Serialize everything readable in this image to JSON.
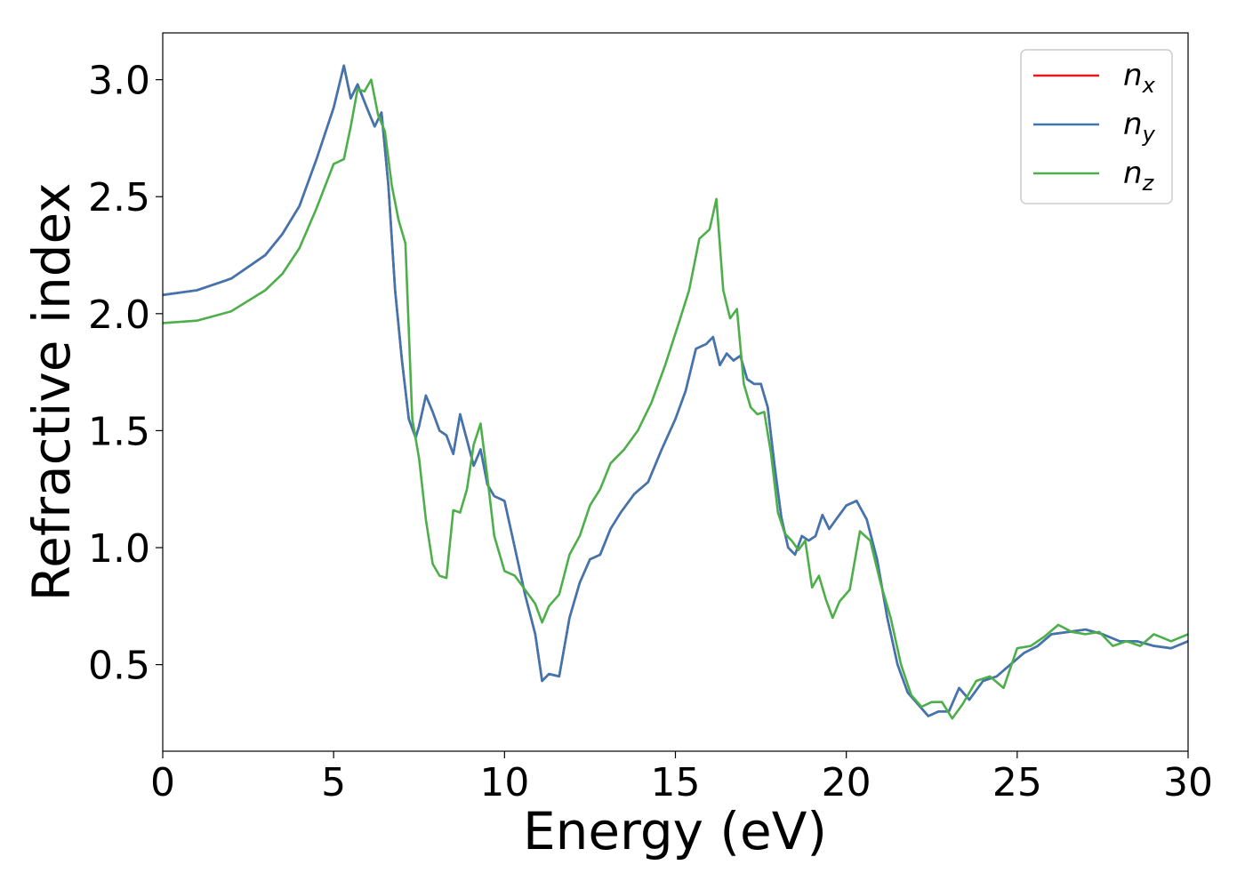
{
  "chart_data": {
    "type": "line",
    "title": "",
    "xlabel": "Energy (eV)",
    "ylabel": "Refractive index",
    "xlim": [
      0,
      30
    ],
    "ylim": [
      0.13,
      3.2
    ],
    "xticks": [
      "0",
      "5",
      "10",
      "15",
      "20",
      "25",
      "30"
    ],
    "yticks": [
      "0.5",
      "1.0",
      "1.5",
      "2.0",
      "2.5",
      "3.0"
    ],
    "xtick_values": [
      0,
      5,
      10,
      15,
      20,
      25,
      30
    ],
    "ytick_values": [
      0.5,
      1.0,
      1.5,
      2.0,
      2.5,
      3.0
    ],
    "grid": false,
    "legend_position": "top-right",
    "series": [
      {
        "name": "n",
        "subscript": "x",
        "color": "#e41a1c",
        "x": [
          0,
          1,
          2,
          3,
          3.5,
          4,
          4.5,
          5,
          5.3,
          5.5,
          5.7,
          6,
          6.2,
          6.4,
          6.6,
          6.8,
          7,
          7.2,
          7.4,
          7.5,
          7.7,
          7.9,
          8.1,
          8.3,
          8.5,
          8.7,
          8.9,
          9.1,
          9.3,
          9.5,
          9.7,
          10,
          10.3,
          10.6,
          10.9,
          11.1,
          11.3,
          11.6,
          11.9,
          12.2,
          12.5,
          12.8,
          13.1,
          13.4,
          13.8,
          14.2,
          14.6,
          15,
          15.3,
          15.6,
          15.9,
          16.1,
          16.3,
          16.5,
          16.7,
          16.9,
          17.1,
          17.3,
          17.5,
          17.7,
          17.9,
          18.1,
          18.3,
          18.5,
          18.7,
          18.9,
          19.1,
          19.3,
          19.5,
          19.7,
          20,
          20.3,
          20.6,
          20.9,
          21.2,
          21.5,
          21.8,
          22.1,
          22.4,
          22.7,
          23,
          23.3,
          23.6,
          24,
          24.4,
          24.8,
          25.2,
          25.6,
          26,
          26.5,
          27,
          27.5,
          28,
          28.5,
          29,
          29.5,
          30
        ],
        "y": [
          2.08,
          2.1,
          2.15,
          2.25,
          2.34,
          2.46,
          2.66,
          2.88,
          3.06,
          2.92,
          2.98,
          2.87,
          2.8,
          2.86,
          2.55,
          2.1,
          1.8,
          1.55,
          1.47,
          1.52,
          1.65,
          1.58,
          1.5,
          1.48,
          1.4,
          1.57,
          1.46,
          1.35,
          1.42,
          1.27,
          1.22,
          1.2,
          1.0,
          0.8,
          0.63,
          0.43,
          0.46,
          0.45,
          0.7,
          0.85,
          0.95,
          0.97,
          1.08,
          1.15,
          1.23,
          1.28,
          1.42,
          1.55,
          1.67,
          1.85,
          1.87,
          1.9,
          1.78,
          1.83,
          1.8,
          1.82,
          1.72,
          1.7,
          1.7,
          1.6,
          1.35,
          1.13,
          1.0,
          0.97,
          1.05,
          1.03,
          1.05,
          1.14,
          1.08,
          1.12,
          1.18,
          1.2,
          1.12,
          0.95,
          0.7,
          0.5,
          0.38,
          0.33,
          0.28,
          0.3,
          0.3,
          0.4,
          0.35,
          0.43,
          0.45,
          0.5,
          0.55,
          0.58,
          0.63,
          0.64,
          0.65,
          0.63,
          0.6,
          0.6,
          0.58,
          0.57,
          0.6
        ]
      },
      {
        "name": "n",
        "subscript": "y",
        "color": "#3d76b0",
        "x": [
          0,
          1,
          2,
          3,
          3.5,
          4,
          4.5,
          5,
          5.3,
          5.5,
          5.7,
          6,
          6.2,
          6.4,
          6.6,
          6.8,
          7,
          7.2,
          7.4,
          7.5,
          7.7,
          7.9,
          8.1,
          8.3,
          8.5,
          8.7,
          8.9,
          9.1,
          9.3,
          9.5,
          9.7,
          10,
          10.3,
          10.6,
          10.9,
          11.1,
          11.3,
          11.6,
          11.9,
          12.2,
          12.5,
          12.8,
          13.1,
          13.4,
          13.8,
          14.2,
          14.6,
          15,
          15.3,
          15.6,
          15.9,
          16.1,
          16.3,
          16.5,
          16.7,
          16.9,
          17.1,
          17.3,
          17.5,
          17.7,
          17.9,
          18.1,
          18.3,
          18.5,
          18.7,
          18.9,
          19.1,
          19.3,
          19.5,
          19.7,
          20,
          20.3,
          20.6,
          20.9,
          21.2,
          21.5,
          21.8,
          22.1,
          22.4,
          22.7,
          23,
          23.3,
          23.6,
          24,
          24.4,
          24.8,
          25.2,
          25.6,
          26,
          26.5,
          27,
          27.5,
          28,
          28.5,
          29,
          29.5,
          30
        ],
        "y": [
          2.08,
          2.1,
          2.15,
          2.25,
          2.34,
          2.46,
          2.66,
          2.88,
          3.06,
          2.92,
          2.98,
          2.87,
          2.8,
          2.86,
          2.55,
          2.1,
          1.8,
          1.55,
          1.47,
          1.52,
          1.65,
          1.58,
          1.5,
          1.48,
          1.4,
          1.57,
          1.46,
          1.35,
          1.42,
          1.27,
          1.22,
          1.2,
          1.0,
          0.8,
          0.63,
          0.43,
          0.46,
          0.45,
          0.7,
          0.85,
          0.95,
          0.97,
          1.08,
          1.15,
          1.23,
          1.28,
          1.42,
          1.55,
          1.67,
          1.85,
          1.87,
          1.9,
          1.78,
          1.83,
          1.8,
          1.82,
          1.72,
          1.7,
          1.7,
          1.6,
          1.35,
          1.13,
          1.0,
          0.97,
          1.05,
          1.03,
          1.05,
          1.14,
          1.08,
          1.12,
          1.18,
          1.2,
          1.12,
          0.95,
          0.7,
          0.5,
          0.38,
          0.33,
          0.28,
          0.3,
          0.3,
          0.4,
          0.35,
          0.43,
          0.45,
          0.5,
          0.55,
          0.58,
          0.63,
          0.64,
          0.65,
          0.63,
          0.6,
          0.6,
          0.58,
          0.57,
          0.6
        ]
      },
      {
        "name": "n",
        "subscript": "z",
        "color": "#4daf4a",
        "x": [
          0,
          1,
          2,
          3,
          3.5,
          4,
          4.5,
          5,
          5.3,
          5.5,
          5.7,
          5.9,
          6.1,
          6.3,
          6.5,
          6.7,
          6.9,
          7.1,
          7.3,
          7.5,
          7.7,
          7.9,
          8.1,
          8.3,
          8.5,
          8.7,
          8.9,
          9.1,
          9.3,
          9.5,
          9.7,
          10,
          10.3,
          10.6,
          10.9,
          11.1,
          11.3,
          11.6,
          11.9,
          12.2,
          12.5,
          12.8,
          13.1,
          13.5,
          13.9,
          14.3,
          14.7,
          15.1,
          15.4,
          15.7,
          16,
          16.2,
          16.4,
          16.6,
          16.8,
          17,
          17.2,
          17.4,
          17.6,
          17.8,
          18,
          18.2,
          18.4,
          18.6,
          18.8,
          19,
          19.2,
          19.4,
          19.6,
          19.8,
          20.1,
          20.4,
          20.7,
          21,
          21.3,
          21.6,
          21.9,
          22.2,
          22.5,
          22.8,
          23.1,
          23.4,
          23.8,
          24.2,
          24.6,
          25,
          25.4,
          25.8,
          26.2,
          26.6,
          27,
          27.4,
          27.8,
          28.2,
          28.6,
          29,
          29.5,
          30
        ],
        "y": [
          1.96,
          1.97,
          2.01,
          2.1,
          2.17,
          2.28,
          2.45,
          2.64,
          2.66,
          2.8,
          2.96,
          2.95,
          3.0,
          2.85,
          2.78,
          2.55,
          2.4,
          2.3,
          1.55,
          1.38,
          1.12,
          0.93,
          0.88,
          0.87,
          1.16,
          1.15,
          1.25,
          1.44,
          1.53,
          1.3,
          1.05,
          0.9,
          0.88,
          0.82,
          0.76,
          0.68,
          0.75,
          0.8,
          0.97,
          1.05,
          1.18,
          1.25,
          1.36,
          1.42,
          1.5,
          1.62,
          1.78,
          1.96,
          2.1,
          2.32,
          2.36,
          2.49,
          2.1,
          1.98,
          2.02,
          1.7,
          1.6,
          1.57,
          1.58,
          1.4,
          1.15,
          1.06,
          1.03,
          0.99,
          1.03,
          0.83,
          0.88,
          0.78,
          0.7,
          0.77,
          0.82,
          1.07,
          1.03,
          0.85,
          0.7,
          0.5,
          0.37,
          0.32,
          0.34,
          0.34,
          0.27,
          0.33,
          0.43,
          0.45,
          0.4,
          0.57,
          0.58,
          0.62,
          0.67,
          0.64,
          0.63,
          0.64,
          0.58,
          0.6,
          0.58,
          0.63,
          0.6,
          0.63
        ]
      }
    ]
  }
}
